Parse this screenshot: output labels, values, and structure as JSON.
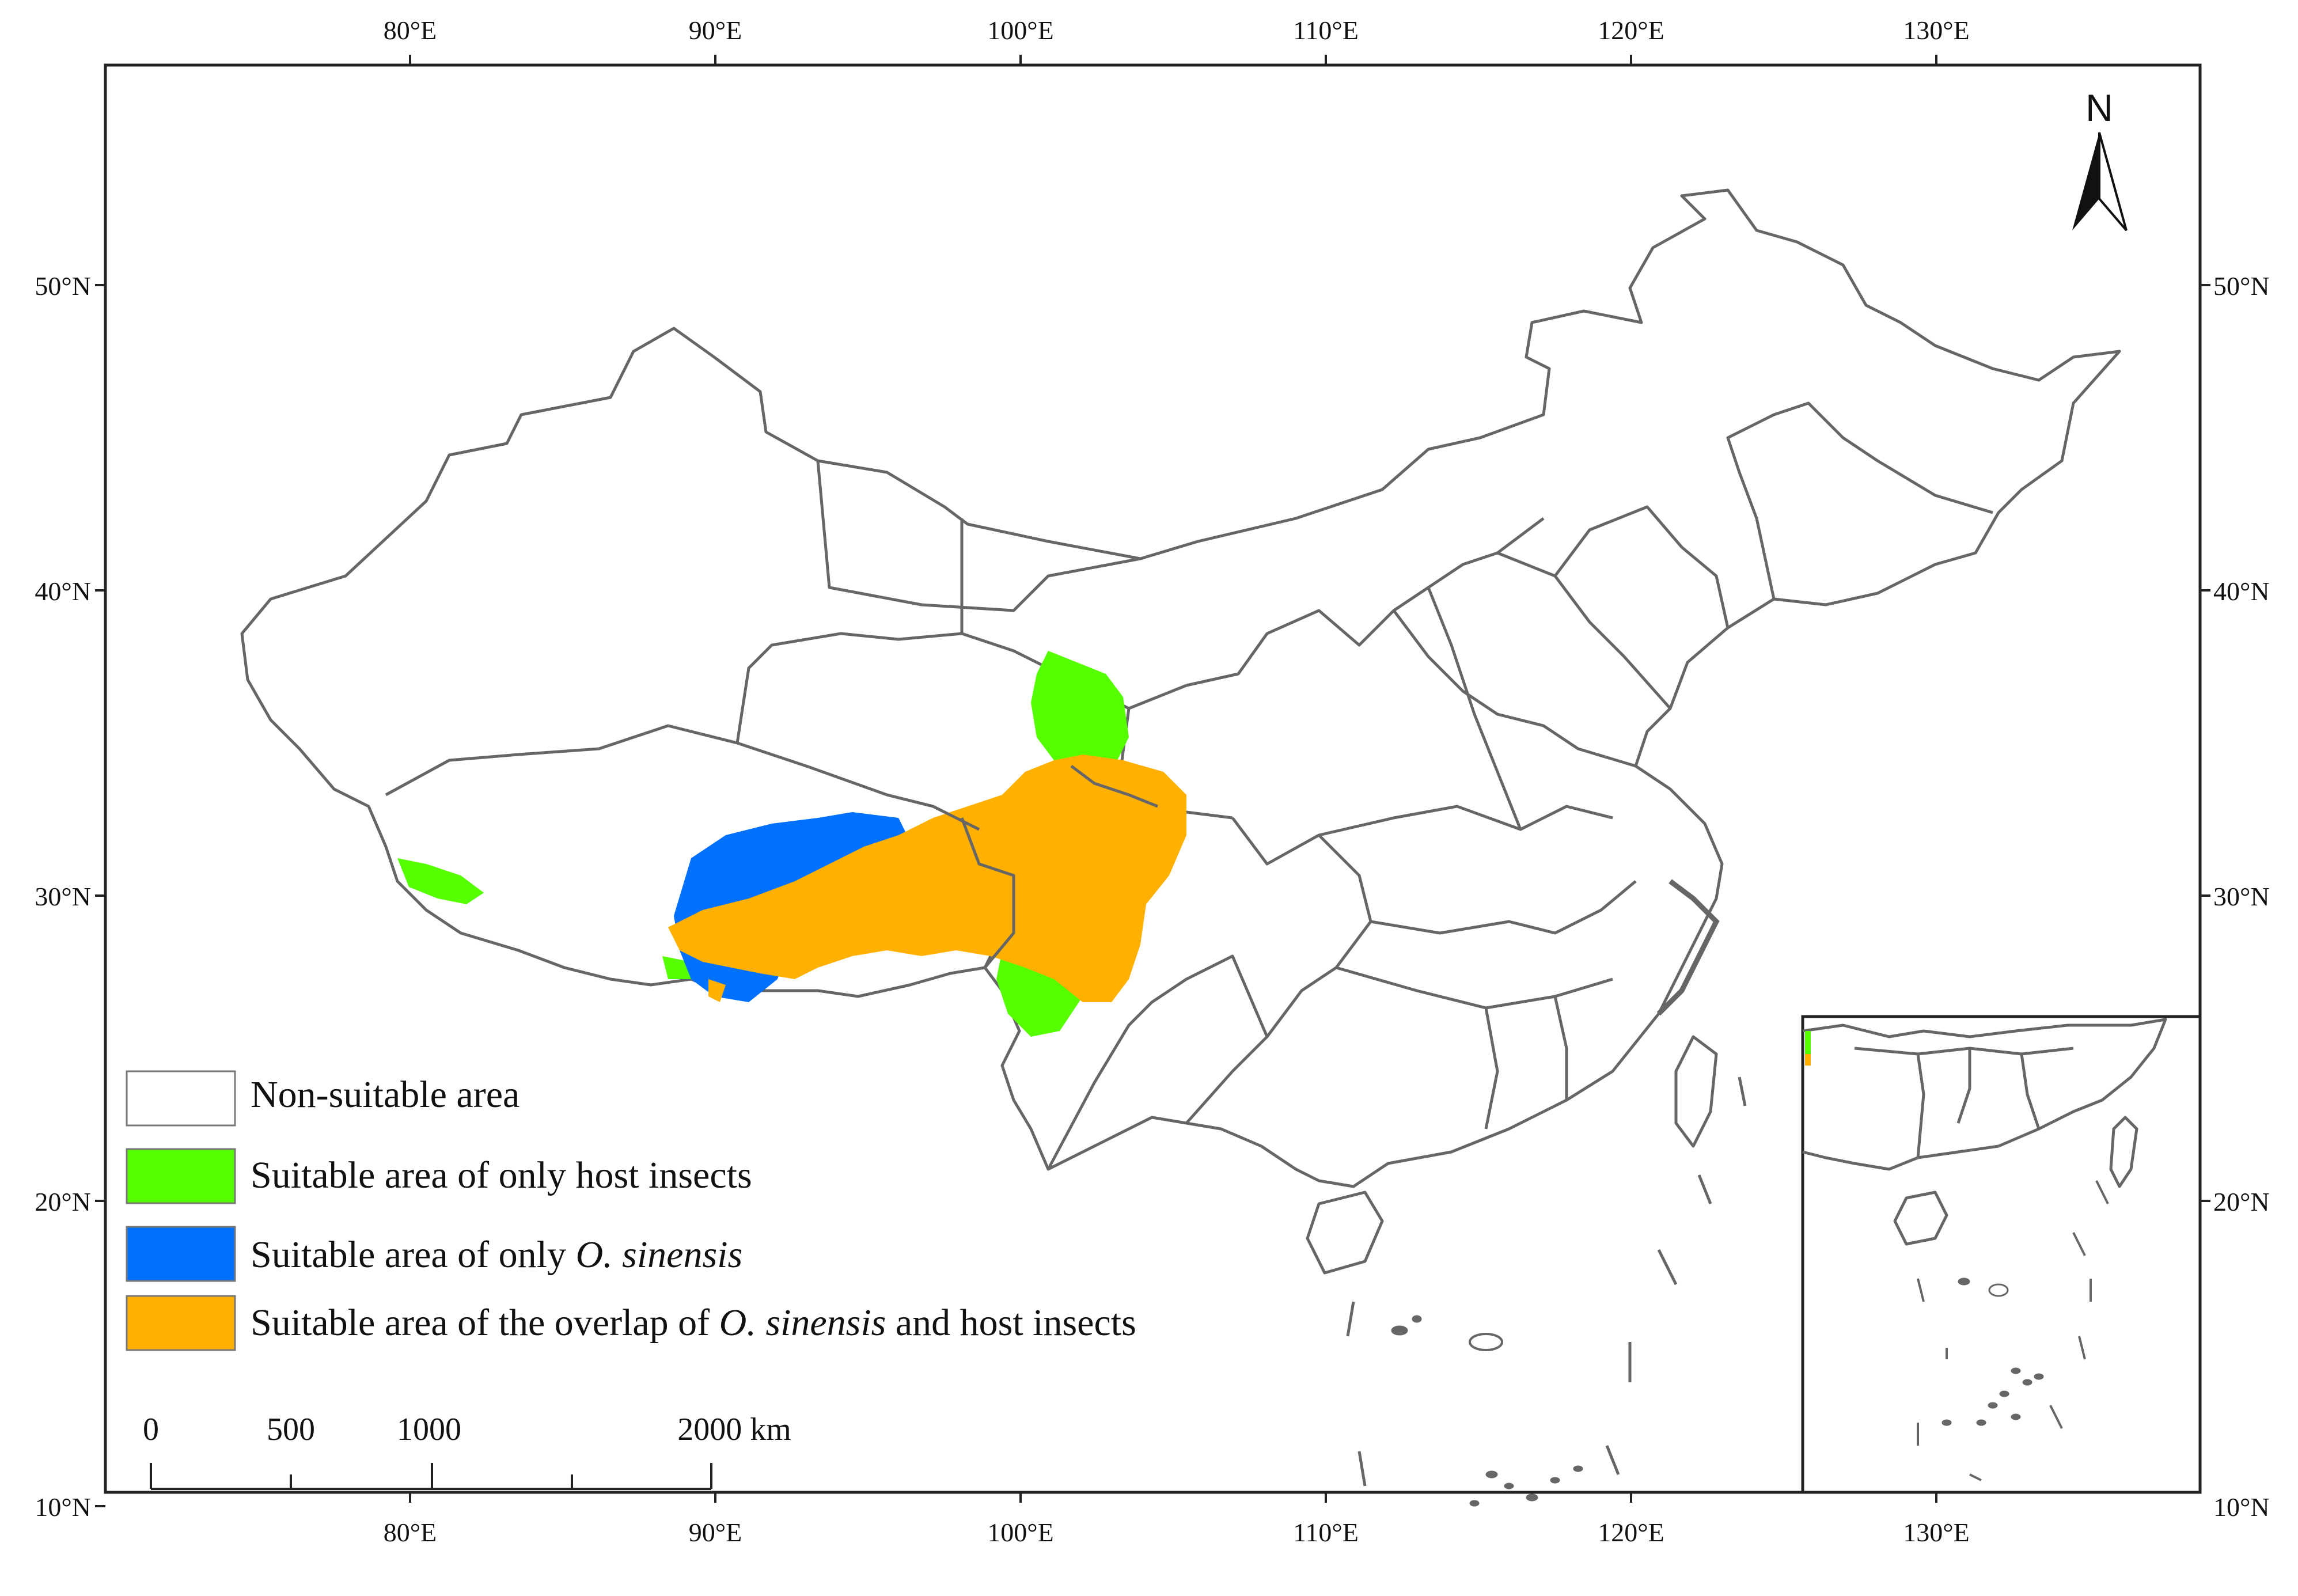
{
  "axes": {
    "longitude_ticks": [
      "80°E",
      "90°E",
      "100°E",
      "110°E",
      "120°E",
      "130°E"
    ],
    "latitude_ticks": [
      "50°N",
      "40°N",
      "30°N",
      "20°N",
      "10°N"
    ]
  },
  "north_arrow": {
    "label": "N",
    "icon": "north-arrow-icon"
  },
  "legend": {
    "items": [
      {
        "label": "Non-suitable area",
        "color": "#ffffff",
        "label_parts": [
          {
            "text": "Non-suitable area",
            "italic": false
          }
        ]
      },
      {
        "label": "Suitable area of only host insects",
        "color": "#55ff00",
        "label_parts": [
          {
            "text": "Suitable area of only host insects",
            "italic": false
          }
        ]
      },
      {
        "label": "Suitable area of only O. sinensis",
        "color": "#0070ff",
        "label_parts": [
          {
            "text": "Suitable area of only ",
            "italic": false
          },
          {
            "text": "O. sinensis",
            "italic": true
          }
        ]
      },
      {
        "label": "Suitable area of the overlap of O. sinensis and host insects",
        "color": "#ffb000",
        "label_parts": [
          {
            "text": "Suitable area of the overlap of ",
            "italic": false
          },
          {
            "text": "O. sinensis",
            "italic": true
          },
          {
            "text": " and host insects",
            "italic": false
          }
        ]
      }
    ]
  },
  "scale_bar": {
    "ticks": [
      "0",
      "500",
      "1000",
      "2000 km"
    ]
  },
  "colors": {
    "border": "#666666",
    "host_only": "#55ff00",
    "sinensis_only": "#0070ff",
    "overlap": "#ffb000"
  }
}
